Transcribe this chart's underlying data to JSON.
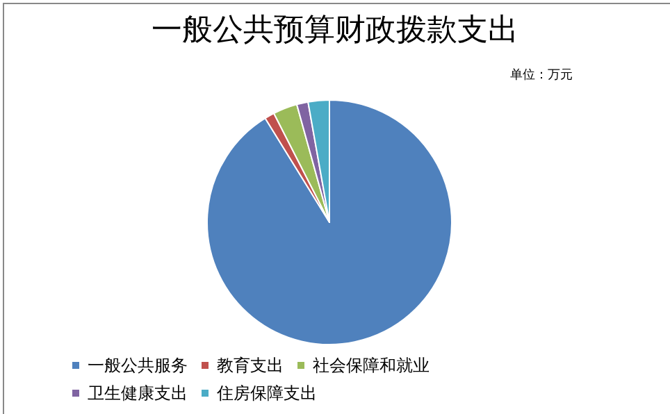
{
  "chart_data": {
    "type": "pie",
    "title": "一般公共预算财政拨款支出",
    "annotations": [
      "单位：万元"
    ],
    "categories": [
      "一般公共服务",
      "教育支出",
      "社会保障和就业",
      "卫生健康支出",
      "住房保障支出"
    ],
    "values": [
      91.2,
      1.3,
      3.2,
      1.5,
      2.8
    ],
    "colors": [
      "#4f81bd",
      "#c0504d",
      "#9bbb59",
      "#8064a2",
      "#4bacc6"
    ],
    "legend": "bottom"
  }
}
